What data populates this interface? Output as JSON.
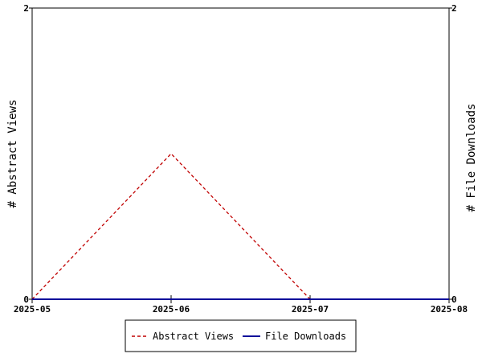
{
  "chart_data": {
    "type": "line",
    "x": [
      "2025-05",
      "2025-06",
      "2025-07",
      "2025-08"
    ],
    "series": [
      {
        "name": "Abstract Views",
        "axis": "left",
        "values": [
          0,
          1,
          0,
          0
        ],
        "color": "#c00000",
        "dash": "dashed"
      },
      {
        "name": "File Downloads",
        "axis": "right",
        "values": [
          0,
          0,
          0,
          0
        ],
        "color": "#000099",
        "dash": "solid"
      }
    ],
    "ylabel_left": "# Abstract Views",
    "ylabel_right": "# File Downloads",
    "ylim_left": [
      0,
      2
    ],
    "ylim_right": [
      0,
      2
    ],
    "yticks_left": [
      "0",
      "2"
    ],
    "yticks_right": [
      "0",
      "2"
    ],
    "grid": false,
    "legend_position": "bottom-center"
  }
}
